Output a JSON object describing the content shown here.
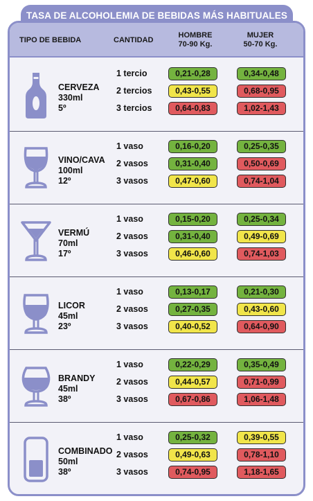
{
  "title": "TASA DE ALCOHOLEMIA DE BEBIDAS MÁS HABITUALES",
  "headers": {
    "tipo": "TIPO DE BEBIDA",
    "cantidad": "CANTIDAD",
    "hombre_line1": "HOMBRE",
    "hombre_line2": "70-90 Kg.",
    "mujer_line1": "MUJER",
    "mujer_line2": "50-70 Kg."
  },
  "colors": {
    "frame": "#8b8fc9",
    "header": "#b7badf",
    "panel": "#f2f2f8",
    "green": "#74b33f",
    "yellow": "#f1e54a",
    "red": "#e05a5e",
    "icon": "#8b8fc9"
  },
  "drinks": [
    {
      "icon": "beer-bottle-icon",
      "name": "CERVEZA",
      "volume": "330ml",
      "degrees": "5º",
      "rows": [
        {
          "qty": "1 tercio",
          "hombre": "0,21-0,28",
          "hombre_level": "green",
          "mujer": "0,34-0,48",
          "mujer_level": "green"
        },
        {
          "qty": "2 tercios",
          "hombre": "0,43-0,55",
          "hombre_level": "yellow",
          "mujer": "0,68-0,95",
          "mujer_level": "red"
        },
        {
          "qty": "3 tercios",
          "hombre": "0,64-0,83",
          "hombre_level": "red",
          "mujer": "1,02-1,43",
          "mujer_level": "red"
        }
      ]
    },
    {
      "icon": "wine-glass-icon",
      "name": "VINO/CAVA",
      "volume": "100ml",
      "degrees": "12º",
      "rows": [
        {
          "qty": "1 vaso",
          "hombre": "0,16-0,20",
          "hombre_level": "green",
          "mujer": "0,25-0,35",
          "mujer_level": "green"
        },
        {
          "qty": "2 vasos",
          "hombre": "0,31-0,40",
          "hombre_level": "green",
          "mujer": "0,50-0,69",
          "mujer_level": "red"
        },
        {
          "qty": "3 vasos",
          "hombre": "0,47-0,60",
          "hombre_level": "yellow",
          "mujer": "0,74-1,04",
          "mujer_level": "red"
        }
      ]
    },
    {
      "icon": "martini-glass-icon",
      "name": "VERMÚ",
      "volume": "70ml",
      "degrees": "17º",
      "rows": [
        {
          "qty": "1 vaso",
          "hombre": "0,15-0,20",
          "hombre_level": "green",
          "mujer": "0,25-0,34",
          "mujer_level": "green"
        },
        {
          "qty": "2 vasos",
          "hombre": "0,31-0,40",
          "hombre_level": "green",
          "mujer": "0,49-0,69",
          "mujer_level": "yellow"
        },
        {
          "qty": "3 vasos",
          "hombre": "0,46-0,60",
          "hombre_level": "yellow",
          "mujer": "0,74-1,03",
          "mujer_level": "red"
        }
      ]
    },
    {
      "icon": "liqueur-glass-icon",
      "name": "LICOR",
      "volume": "45ml",
      "degrees": "23º",
      "rows": [
        {
          "qty": "1 vaso",
          "hombre": "0,13-0,17",
          "hombre_level": "green",
          "mujer": "0,21-0,30",
          "mujer_level": "green"
        },
        {
          "qty": "2 vasos",
          "hombre": "0,27-0,35",
          "hombre_level": "green",
          "mujer": "0,43-0,60",
          "mujer_level": "yellow"
        },
        {
          "qty": "3 vasos",
          "hombre": "0,40-0,52",
          "hombre_level": "yellow",
          "mujer": "0,64-0,90",
          "mujer_level": "red"
        }
      ]
    },
    {
      "icon": "brandy-glass-icon",
      "name": "BRANDY",
      "volume": "45ml",
      "degrees": "38º",
      "rows": [
        {
          "qty": "1 vaso",
          "hombre": "0,22-0,29",
          "hombre_level": "green",
          "mujer": "0,35-0,49",
          "mujer_level": "green"
        },
        {
          "qty": "2 vasos",
          "hombre": "0,44-0,57",
          "hombre_level": "yellow",
          "mujer": "0,71-0,99",
          "mujer_level": "red"
        },
        {
          "qty": "3 vasos",
          "hombre": "0,67-0,86",
          "hombre_level": "red",
          "mujer": "1,06-1,48",
          "mujer_level": "red"
        }
      ]
    },
    {
      "icon": "highball-glass-icon",
      "name": "COMBINADO",
      "volume": "50ml",
      "degrees": "38º",
      "rows": [
        {
          "qty": "1 vaso",
          "hombre": "0,25-0,32",
          "hombre_level": "green",
          "mujer": "0,39-0,55",
          "mujer_level": "yellow"
        },
        {
          "qty": "2 vasos",
          "hombre": "0,49-0,63",
          "hombre_level": "yellow",
          "mujer": "0,78-1,10",
          "mujer_level": "red"
        },
        {
          "qty": "3 vasos",
          "hombre": "0,74-0,95",
          "hombre_level": "red",
          "mujer": "1,18-1,65",
          "mujer_level": "red"
        }
      ]
    }
  ]
}
